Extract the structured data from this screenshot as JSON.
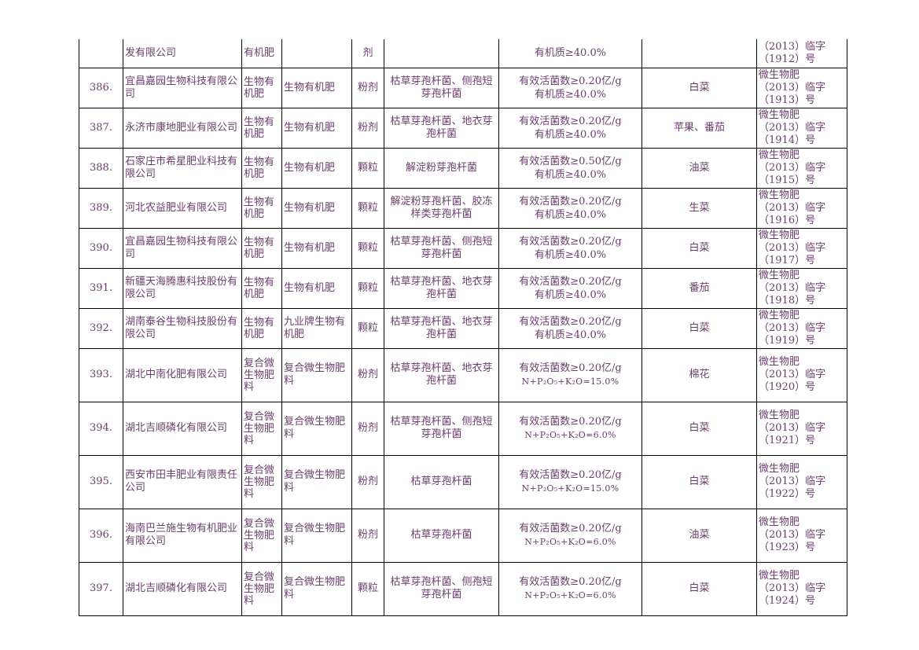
{
  "rows": [
    {
      "no": "",
      "company": "发有限公司",
      "category": "有机肥",
      "name": "",
      "form": "剂",
      "strain": "",
      "content_1": "",
      "content_2": "有机质≥40.0%",
      "crop": "",
      "reg_1": "（2013）临字",
      "reg_2": "（1912）号",
      "reg_3": ""
    },
    {
      "no": "386.",
      "company": "宜昌嘉园生物科技有限公司",
      "category": "生物有机肥",
      "name": "生物有机肥",
      "form": "粉剂",
      "strain": "枯草芽孢杆菌、侧孢短芽孢杆菌",
      "content_1": "有效活菌数≥0.20亿/g",
      "content_2": "有机质≥40.0%",
      "crop": "白菜",
      "reg_1": "微生物肥",
      "reg_2": "（2013）临字",
      "reg_3": "（1913）号"
    },
    {
      "no": "387.",
      "company": "永济市康地肥业有限公司",
      "category": "生物有机肥",
      "name": "生物有机肥",
      "form": "粉剂",
      "strain": "枯草芽孢杆菌、地衣芽孢杆菌",
      "content_1": "有效活菌数≥0.20亿/g",
      "content_2": "有机质≥40.0%",
      "crop": "苹果、番茄",
      "reg_1": "微生物肥",
      "reg_2": "（2013）临字",
      "reg_3": "（1914）号"
    },
    {
      "no": "388.",
      "company": "石家庄市希星肥业科技有限公司",
      "category": "生物有机肥",
      "name": "生物有机肥",
      "form": "颗粒",
      "strain": "解淀粉芽孢杆菌",
      "content_1": "有效活菌数≥0.50亿/g",
      "content_2": "有机质≥40.0%",
      "crop": "油菜",
      "reg_1": "微生物肥",
      "reg_2": "（2013）临字",
      "reg_3": "（1915）号"
    },
    {
      "no": "389.",
      "company": "河北农益肥业有限公司",
      "category": "生物有机肥",
      "name": "生物有机肥",
      "form": "颗粒",
      "strain": "解淀粉芽孢杆菌、胶冻样类芽孢杆菌",
      "content_1": "有效活菌数≥0.20亿/g",
      "content_2": "有机质≥40.0%",
      "crop": "生菜",
      "reg_1": "微生物肥",
      "reg_2": "（2013）临字",
      "reg_3": "（1916）号"
    },
    {
      "no": "390.",
      "company": "宜昌嘉园生物科技有限公司",
      "category": "生物有机肥",
      "name": "生物有机肥",
      "form": "颗粒",
      "strain": "枯草芽孢杆菌、侧孢短芽孢杆菌",
      "content_1": "有效活菌数≥0.20亿/g",
      "content_2": "有机质≥40.0%",
      "crop": "白菜",
      "reg_1": "微生物肥",
      "reg_2": "（2013）临字",
      "reg_3": "（1917）号"
    },
    {
      "no": "391.",
      "company": "新疆天海腾惠科技股份有限公司",
      "category": "生物有机肥",
      "name": "生物有机肥",
      "form": "颗粒",
      "strain": "枯草芽孢杆菌、地衣芽孢杆菌",
      "content_1": "有效活菌数≥0.20亿/g",
      "content_2": "有机质≥40.0%",
      "crop": "番茄",
      "reg_1": "微生物肥",
      "reg_2": "（2013）临字",
      "reg_3": "（1918）号"
    },
    {
      "no": "392.",
      "company": "湖南泰谷生物科技股份有限公司",
      "category": "生物有机肥",
      "name": "九业牌生物有机肥",
      "form": "颗粒",
      "strain": "枯草芽孢杆菌、地衣芽孢杆菌",
      "content_1": "有效活菌数≥0.20亿/g",
      "content_2": "有机质≥40.0%",
      "crop": "白菜",
      "reg_1": "微生物肥",
      "reg_2": "（2013）临字",
      "reg_3": "（1919）号"
    },
    {
      "no": "393.",
      "company": "湖北中南化肥有限公司",
      "category": "复合微生物肥料",
      "name": "复合微生物肥料",
      "form": "粉剂",
      "strain": "枯草芽孢杆菌、地衣芽孢杆菌",
      "content_1": "有效活菌数≥0.20亿/g",
      "content_2": "N+P₂O₅+K₂O=15.0%",
      "crop": "棉花",
      "reg_1": "微生物肥",
      "reg_2": "（2013）临字",
      "reg_3": "（1920）号"
    },
    {
      "no": "394.",
      "company": "湖北吉顺磷化有限公司",
      "category": "复合微生物肥料",
      "name": "复合微生物肥料",
      "form": "粉剂",
      "strain": "枯草芽孢杆菌、侧孢短芽孢杆菌",
      "content_1": "有效活菌数≥0.20亿/g",
      "content_2": "N+P₂O₅+K₂O=6.0%",
      "crop": "白菜",
      "reg_1": "微生物肥",
      "reg_2": "（2013）临字",
      "reg_3": "（1921）号"
    },
    {
      "no": "395.",
      "company": "西安市田丰肥业有限责任公司",
      "category": "复合微生物肥料",
      "name": "复合微生物肥料",
      "form": "粉剂",
      "strain": "枯草芽孢杆菌",
      "content_1": "有效活菌数≥0.20亿/g",
      "content_2": "N+P₂O₅+K₂O=15.0%",
      "crop": "白菜",
      "reg_1": "微生物肥",
      "reg_2": "（2013）临字",
      "reg_3": "（1922）号"
    },
    {
      "no": "396.",
      "company": "海南巴兰施生物有机肥业有限公司",
      "category": "复合微生物肥料",
      "name": "复合微生物肥料",
      "form": "粉剂",
      "strain": "枯草芽孢杆菌",
      "content_1": "有效活菌数≥0.20亿/g",
      "content_2": "N+P₂O₅+K₂O=6.0%",
      "crop": "油菜",
      "reg_1": "微生物肥",
      "reg_2": "（2013）临字",
      "reg_3": "（1923）号"
    },
    {
      "no": "397.",
      "company": "湖北吉顺磷化有限公司",
      "category": "复合微生物肥料",
      "name": "复合微生物肥料",
      "form": "颗粒",
      "strain": "枯草芽孢杆菌、侧孢短芽孢杆菌",
      "content_1": "有效活菌数≥0.20亿/g",
      "content_2": "N+P₂O₅+K₂O=6.0%",
      "crop": "白菜",
      "reg_1": "微生物肥",
      "reg_2": "（2013）临字",
      "reg_3": "（1924）号"
    }
  ]
}
